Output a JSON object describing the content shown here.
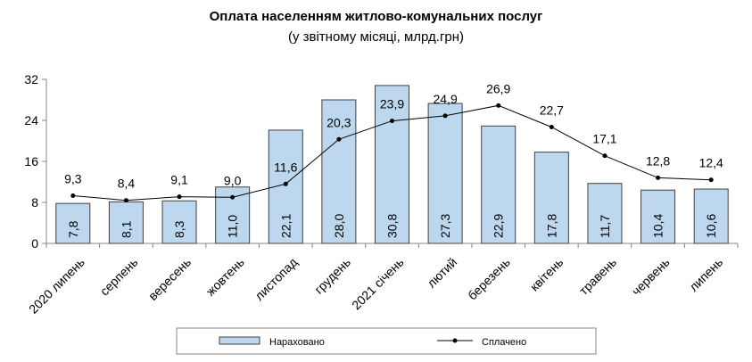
{
  "chart_data": {
    "type": "bar+line",
    "title": "Оплата населенням житлово-комунальних послуг",
    "subtitle": "(у звітному місяці, млрд.грн)",
    "categories": [
      "2020 липень",
      "серпень",
      "вересень",
      "жовтень",
      "листопад",
      "грудень",
      "2021 січень",
      "лютий",
      "березень",
      "квітень",
      "травень",
      "червень",
      "липень"
    ],
    "series": [
      {
        "name": "Нараховано",
        "type": "bar",
        "color": "#BDD7EE",
        "values": [
          7.8,
          8.1,
          8.3,
          11.0,
          22.1,
          28.0,
          30.8,
          27.3,
          22.9,
          17.8,
          11.7,
          10.4,
          10.6
        ],
        "labels": [
          "7,8",
          "8,1",
          "8,3",
          "11,0",
          "22,1",
          "28,0",
          "30,8",
          "27,3",
          "22,9",
          "17,8",
          "11,7",
          "10,4",
          "10,6"
        ]
      },
      {
        "name": "Сплачено",
        "type": "line",
        "color": "#000000",
        "values": [
          9.3,
          8.4,
          9.1,
          9.0,
          11.6,
          20.3,
          23.9,
          24.9,
          26.9,
          22.7,
          17.1,
          12.8,
          12.4
        ],
        "labels": [
          "9,3",
          "8,4",
          "9,1",
          "9,0",
          "11,6",
          "20,3",
          "23,9",
          "24,9",
          "26,9",
          "22,7",
          "17,1",
          "12,8",
          "12,4"
        ]
      }
    ],
    "ylim": [
      0,
      32
    ],
    "yticks": [
      "0",
      "8",
      "16",
      "24",
      "32"
    ],
    "grid": false,
    "legend": "bottom"
  }
}
